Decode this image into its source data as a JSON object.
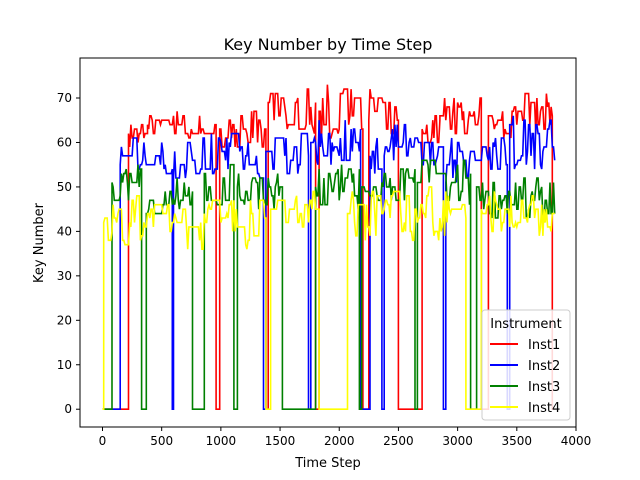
{
  "chart_data": {
    "type": "line",
    "title": "Key Number by Time Step",
    "xlabel": "Time Step",
    "ylabel": "Key Number",
    "xlim": [
      -190,
      4000
    ],
    "ylim": [
      -4,
      79
    ],
    "xticks": [
      0,
      500,
      1000,
      1500,
      2000,
      2500,
      3000,
      3500,
      4000
    ],
    "yticks": [
      0,
      10,
      20,
      30,
      40,
      50,
      60,
      70
    ],
    "grid": false,
    "legend": {
      "title": "Instrument",
      "placement": "lower-right"
    },
    "series": [
      {
        "name": "Inst1",
        "color": "#ff0000",
        "segments": [
          {
            "range": [
              0,
              220
            ],
            "value": 0
          },
          {
            "range": [
              220,
              380
            ],
            "base": 62,
            "amp": 4,
            "seed": 11
          },
          {
            "range": [
              380,
              960
            ],
            "base": 64,
            "amp": 3,
            "seed": 12
          },
          {
            "range": [
              960,
              990
            ],
            "value": 0
          },
          {
            "range": [
              990,
              1380
            ],
            "base": 63,
            "amp": 5,
            "seed": 13
          },
          {
            "range": [
              1380,
              1400
            ],
            "value": 0
          },
          {
            "range": [
              1400,
              1800
            ],
            "base": 67,
            "amp": 5,
            "seed": 14
          },
          {
            "range": [
              1800,
              1830
            ],
            "value": 0
          },
          {
            "range": [
              1830,
              2200
            ],
            "base": 67,
            "amp": 6,
            "seed": 15
          },
          {
            "range": [
              2200,
              2250
            ],
            "value": 0
          },
          {
            "range": [
              2250,
              2500
            ],
            "base": 67,
            "amp": 5,
            "seed": 16
          },
          {
            "range": [
              2500,
              2700
            ],
            "value": 0
          },
          {
            "range": [
              2700,
              2850
            ],
            "base": 63,
            "amp": 4,
            "seed": 17
          },
          {
            "range": [
              2850,
              3200
            ],
            "base": 66,
            "amp": 5,
            "seed": 18
          },
          {
            "range": [
              3200,
              3260
            ],
            "value": 0
          },
          {
            "range": [
              3260,
              3800
            ],
            "base": 66,
            "amp": 5,
            "seed": 19
          },
          {
            "range": [
              3800,
              3820
            ],
            "value": 0
          }
        ]
      },
      {
        "name": "Inst2",
        "color": "#0000ff",
        "segments": [
          {
            "range": [
              0,
              150
            ],
            "value": 0
          },
          {
            "range": [
              150,
              590
            ],
            "base": 57,
            "amp": 4,
            "seed": 21
          },
          {
            "range": [
              590,
              600
            ],
            "value": 0
          },
          {
            "range": [
              600,
              1360
            ],
            "base": 57,
            "amp": 5,
            "seed": 22
          },
          {
            "range": [
              1360,
              1380
            ],
            "value": 0
          },
          {
            "range": [
              1380,
              1740
            ],
            "base": 58,
            "amp": 5,
            "seed": 23
          },
          {
            "range": [
              1740,
              1760
            ],
            "value": 0
          },
          {
            "range": [
              1760,
              2180
            ],
            "base": 60,
            "amp": 5,
            "seed": 24
          },
          {
            "range": [
              2180,
              2260
            ],
            "value": 0
          },
          {
            "range": [
              2260,
              2360
            ],
            "base": 57,
            "amp": 4,
            "seed": 25
          },
          {
            "range": [
              2360,
              2380
            ],
            "value": 0
          },
          {
            "range": [
              2380,
              2880
            ],
            "base": 60,
            "amp": 5,
            "seed": 26
          },
          {
            "range": [
              2880,
              2900
            ],
            "value": 0
          },
          {
            "range": [
              2900,
              3420
            ],
            "base": 56,
            "amp": 5,
            "seed": 27
          },
          {
            "range": [
              3420,
              3440
            ],
            "value": 0
          },
          {
            "range": [
              3440,
              3820
            ],
            "base": 60,
            "amp": 6,
            "seed": 28
          }
        ]
      },
      {
        "name": "Inst3",
        "color": "#008000",
        "segments": [
          {
            "range": [
              0,
              80
            ],
            "value": 0
          },
          {
            "range": [
              80,
              330
            ],
            "base": 51,
            "amp": 4,
            "seed": 31
          },
          {
            "range": [
              330,
              370
            ],
            "value": 0
          },
          {
            "range": [
              370,
              760
            ],
            "base": 48,
            "amp": 4,
            "seed": 32
          },
          {
            "range": [
              760,
              860
            ],
            "value": 0
          },
          {
            "range": [
              860,
              1110
            ],
            "base": 50,
            "amp": 5,
            "seed": 33
          },
          {
            "range": [
              1110,
              1140
            ],
            "value": 0
          },
          {
            "range": [
              1140,
              1520
            ],
            "base": 49,
            "amp": 4,
            "seed": 34
          },
          {
            "range": [
              1520,
              1800
            ],
            "value": 0
          },
          {
            "range": [
              1800,
              2170
            ],
            "base": 50,
            "amp": 5,
            "seed": 35
          },
          {
            "range": [
              2170,
              2190
            ],
            "value": 0
          },
          {
            "range": [
              2190,
              2640
            ],
            "base": 50,
            "amp": 4,
            "seed": 36
          },
          {
            "range": [
              2640,
              2660
            ],
            "value": 0
          },
          {
            "range": [
              2660,
              3110
            ],
            "base": 51,
            "amp": 5,
            "seed": 37
          },
          {
            "range": [
              3110,
              3160
            ],
            "value": 0
          },
          {
            "range": [
              3160,
              3820
            ],
            "base": 47,
            "amp": 5,
            "seed": 38
          }
        ]
      },
      {
        "name": "Inst4",
        "color": "#ffff00",
        "segments": [
          {
            "range": [
              0,
              10
            ],
            "value": 0
          },
          {
            "range": [
              10,
              1380
            ],
            "base": 42,
            "amp": 6,
            "seed": 41
          },
          {
            "range": [
              1380,
              1420
            ],
            "value": 0
          },
          {
            "range": [
              1420,
              1830
            ],
            "base": 45,
            "amp": 4,
            "seed": 42
          },
          {
            "range": [
              1830,
              2070
            ],
            "value": 0
          },
          {
            "range": [
              2070,
              3070
            ],
            "base": 44,
            "amp": 6,
            "seed": 43
          },
          {
            "range": [
              3070,
              3200
            ],
            "value": 0
          },
          {
            "range": [
              3200,
              3820
            ],
            "base": 44,
            "amp": 5,
            "seed": 44
          }
        ]
      }
    ]
  }
}
